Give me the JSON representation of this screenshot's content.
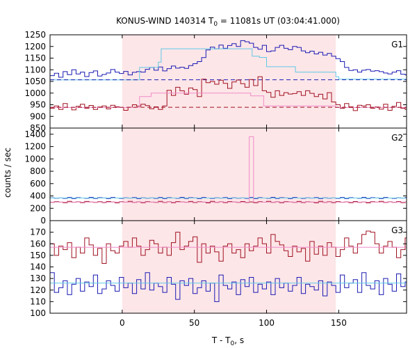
{
  "chart_data": {
    "type": "line",
    "title": {
      "prefix": "KONUS-WIND 140314 T",
      "sub": "0",
      "suffix": " = 11081s UT (03:04:41.000)"
    },
    "xlabel": {
      "prefix": "T - T",
      "sub": "0",
      "suffix": ", s"
    },
    "ylabel": "counts / sec",
    "xlim": [
      -50,
      197
    ],
    "x_ticks": [
      0,
      50,
      100,
      150
    ],
    "highlight_interval": [
      0,
      148
    ],
    "highlight_color": "#fde6e8",
    "bin_width": 3,
    "colors": {
      "blue": "#1a1ab4",
      "red": "#a01020",
      "cyan": "#5fc8e6",
      "pink": "#f08cc8"
    },
    "panels": [
      {
        "label": "G1",
        "ylim": [
          850,
          1250
        ],
        "y_ticks": [
          850,
          900,
          950,
          1000,
          1050,
          1100,
          1150,
          1200,
          1250
        ],
        "series": [
          {
            "color": "blue",
            "style": "step",
            "x_start": -50,
            "values": [
              1075,
              1085,
              1068,
              1092,
              1079,
              1100,
              1082,
              1090,
              1071,
              1088,
              1095,
              1073,
              1080,
              1086,
              1101,
              1090,
              1084,
              1093,
              1078,
              1089,
              1092,
              1090,
              1102,
              1110,
              1098,
              1112,
              1095,
              1105,
              1116,
              1107,
              1111,
              1106,
              1118,
              1126,
              1135,
              1152,
              1185,
              1197,
              1190,
              1206,
              1192,
              1204,
              1212,
              1200,
              1225,
              1220,
              1214,
              1196,
              1188,
              1205,
              1178,
              1181,
              1196,
              1205,
              1192,
              1186,
              1200,
              1196,
              1181,
              1173,
              1180,
              1168,
              1175,
              1163,
              1170,
              1158,
              1148,
              1135,
              1110,
              1097,
              1100,
              1090,
              1098,
              1101,
              1094,
              1096,
              1092,
              1086,
              1082,
              1090,
              1096,
              1081,
              1078,
              1090,
              1075,
              1088,
              1062,
              1068,
              1085,
              1070,
              1073,
              1065,
              1078,
              1060,
              1070,
              1074,
              1061,
              1068,
              1075,
              1058,
              1072,
              1066,
              1071,
              1055,
              1075,
              1068,
              1064,
              1070,
              1059,
              1068,
              1063,
              1074,
              1065,
              1062,
              1058,
              1071,
              1068,
              1063
            ]
          },
          {
            "color": "cyan",
            "style": "step",
            "segments": [
              [
                -50,
                1057
              ],
              [
                12,
                1110
              ],
              [
                25,
                1133
              ],
              [
                27,
                1190
              ],
              [
                90,
                1158
              ],
              [
                95,
                1153
              ],
              [
                100,
                1113
              ],
              [
                120,
                1090
              ],
              [
                148,
                1070
              ],
              [
                150,
                1060
              ]
            ]
          },
          {
            "color": "blue",
            "style": "dashed",
            "level": 1057
          },
          {
            "color": "red",
            "style": "step",
            "x_start": -50,
            "values": [
              935,
              945,
              930,
              955,
              938,
              928,
              943,
              952,
              935,
              947,
              930,
              940,
              945,
              932,
              948,
              941,
              938,
              926,
              939,
              950,
              944,
              952,
              946,
              933,
              941,
              930,
              945,
              1012,
              990,
              1025,
              1010,
              995,
              1022,
              1015,
              985,
              1060,
              1045,
              1050,
              1038,
              1055,
              1042,
              1020,
              1048,
              1056,
              1040,
              1025,
              1058,
              1032,
              1070,
              1010,
              1003,
              982,
              1010,
              990,
              1002,
              996,
              998,
              1006,
              990,
              1010,
              999,
              985,
              995,
              975,
              1002,
              962,
              950,
              935,
              955,
              941,
              925,
              948,
              945,
              950,
              935,
              940,
              931,
              952,
              926,
              943,
              960,
              935,
              930,
              948,
              945,
              935,
              955,
              945,
              985,
              930,
              950,
              970,
              935,
              940,
              945,
              955,
              935,
              958,
              935,
              945,
              925,
              915,
              940,
              938,
              935,
              930,
              950,
              915,
              945,
              960,
              935,
              900,
              940,
              928,
              940,
              945,
              935,
              940,
              950,
              942
            ]
          },
          {
            "color": "pink",
            "style": "step",
            "segments": [
              [
                -50,
                938
              ],
              [
                12,
                985
              ],
              [
                20,
                1000
              ],
              [
                89,
                988
              ],
              [
                98,
                945
              ],
              [
                148,
                938
              ]
            ]
          },
          {
            "color": "red",
            "style": "dashed",
            "level": 939
          }
        ]
      },
      {
        "label": "G2",
        "ylim": [
          0,
          1500
        ],
        "y_ticks": [
          0,
          200,
          400,
          600,
          800,
          1000,
          1200,
          1400
        ],
        "series": [
          {
            "color": "blue",
            "style": "step",
            "x_start": -50,
            "values": [
              370,
              364,
              368,
              361,
              375,
              359,
              372,
              366,
              362,
              377,
              360,
              372,
              368,
              358,
              374,
              366,
              361,
              369,
              365,
              373,
              357,
              370,
              364,
              368,
              361,
              375,
              359,
              372,
              366,
              362,
              377,
              360,
              372,
              368,
              358,
              374,
              366,
              361,
              369,
              365,
              373,
              357,
              370,
              364,
              368,
              361,
              375,
              359,
              372,
              366,
              362,
              377,
              360,
              372,
              368,
              358,
              374,
              366,
              361,
              369,
              365,
              373,
              357,
              370,
              364,
              368,
              361,
              375,
              359,
              372,
              366,
              362,
              377,
              360,
              372,
              368,
              358,
              374,
              366,
              361,
              369,
              365,
              373,
              357,
              370,
              364,
              368,
              361,
              375,
              359,
              372,
              366,
              362,
              377,
              360,
              372,
              368,
              358,
              374,
              366,
              361,
              369,
              365,
              373,
              357,
              370,
              364,
              368,
              361,
              375,
              359,
              372,
              366,
              362,
              377,
              360,
              372,
              368
            ]
          },
          {
            "color": "cyan",
            "style": "step",
            "segments": [
              [
                -50,
                366
              ],
              [
                197,
                366
              ]
            ]
          },
          {
            "color": "red",
            "style": "step",
            "x_start": -50,
            "values": [
              295,
              308,
              300,
              290,
              312,
              298,
              305,
              292,
              311,
              302,
              296,
              307,
              293,
              310,
              301,
              289,
              306,
              299,
              314,
              295,
              303,
              291,
              308,
              300,
              297,
              312,
              294,
              305,
              290,
              309,
              302,
              298,
              311,
              293,
              306,
              300,
              288,
              313,
              296,
              304,
              292,
              309,
              301,
              297,
              310,
              294,
              303,
              291,
              307,
              299,
              312,
              295,
              304,
              290,
              308,
              302,
              296,
              311,
              293,
              305,
              300,
              289,
              313,
              297,
              306,
              292,
              309,
              298,
              303,
              291,
              310,
              295,
              302,
              288,
              307,
              300,
              312,
              294,
              305,
              297,
              309,
              292,
              301,
              296,
              310,
              299,
              304,
              290,
              307,
              293,
              312,
              302,
              297,
              308,
              294,
              303,
              290,
              311,
              299,
              305,
              292,
              308,
              296,
              302,
              310,
              289,
              304,
              298,
              307,
              293,
              300,
              295,
              309,
              297
            ]
          },
          {
            "color": "pink",
            "style": "step",
            "segments": [
              [
                -50,
                300
              ],
              [
                88,
                1360
              ],
              [
                91,
                300
              ],
              [
                197,
                300
              ]
            ]
          }
        ]
      },
      {
        "label": "G3",
        "ylim": [
          100,
          180
        ],
        "y_ticks": [
          100,
          110,
          120,
          130,
          140,
          150,
          160,
          170
        ],
        "series": [
          {
            "color": "red",
            "style": "step",
            "x_start": -50,
            "values": [
              160,
              150,
              158,
              155,
              161,
              148,
              157,
              152,
              165,
              159,
              150,
              156,
              143,
              160,
              154,
              152,
              158,
              162,
              157,
              165,
              158,
              150,
              155,
              163,
              160,
              152,
              157,
              150,
              161,
              170,
              155,
              158,
              162,
              166,
              144,
              160,
              152,
              158,
              153,
              145,
              158,
              160,
              152,
              155,
              148,
              160,
              154,
              158,
              165,
              160,
              152,
              168,
              162,
              159,
              154,
              149,
              158,
              153,
              156,
              145,
              162,
              151,
              158,
              150,
              161,
              157,
              149,
              155,
              165,
              158,
              152,
              160,
              168,
              171,
              170,
              160,
              152,
              158,
              162,
              157,
              148,
              155,
              165,
              160,
              153,
              158,
              150,
              162,
              146,
              158,
              168,
              155,
              160,
              150,
              164,
              157,
              145,
              158,
              142,
              158,
              162,
              150,
              165,
              158,
              152,
              163,
              149,
              160,
              157,
              145,
              155,
              162,
              160,
              168,
              155,
              158,
              160,
              162
            ]
          },
          {
            "color": "pink",
            "style": "step",
            "segments": [
              [
                -50,
                157
              ],
              [
                197,
                157
              ]
            ]
          },
          {
            "color": "blue",
            "style": "step",
            "x_start": -50,
            "values": [
              135,
              118,
              122,
              128,
              116,
              125,
              130,
              119,
              127,
              123,
              133,
              117,
              121,
              128,
              124,
              119,
              131,
              122,
              126,
              117,
              129,
              121,
              135,
              120,
              126,
              123,
              118,
              131,
              125,
              112,
              128,
              124,
              130,
              117,
              122,
              128,
              119,
              126,
              110,
              133,
              124,
              121,
              127,
              116,
              129,
              123,
              131,
              118,
              125,
              121,
              127,
              116,
              130,
              122,
              126,
              119,
              124,
              131,
              117,
              125,
              123,
              120,
              128,
              115,
              127,
              124,
              118,
              133,
              122,
              126,
              129,
              118,
              135,
              124,
              121,
              128,
              116,
              130,
              125,
              119,
              134,
              123,
              127,
              117,
              129,
              124,
              112,
              128,
              121,
              126,
              119,
              131,
              124,
              118,
              127,
              122,
              130,
              116,
              125,
              121,
              128,
              119,
              133,
              124,
              122,
              127,
              118,
              129,
              125,
              134,
              122,
              126,
              119,
              128,
              123,
              130,
              124,
              117
            ]
          },
          {
            "color": "cyan",
            "style": "step",
            "segments": [
              [
                -50,
                126
              ],
              [
                197,
                126
              ]
            ]
          }
        ]
      }
    ]
  }
}
